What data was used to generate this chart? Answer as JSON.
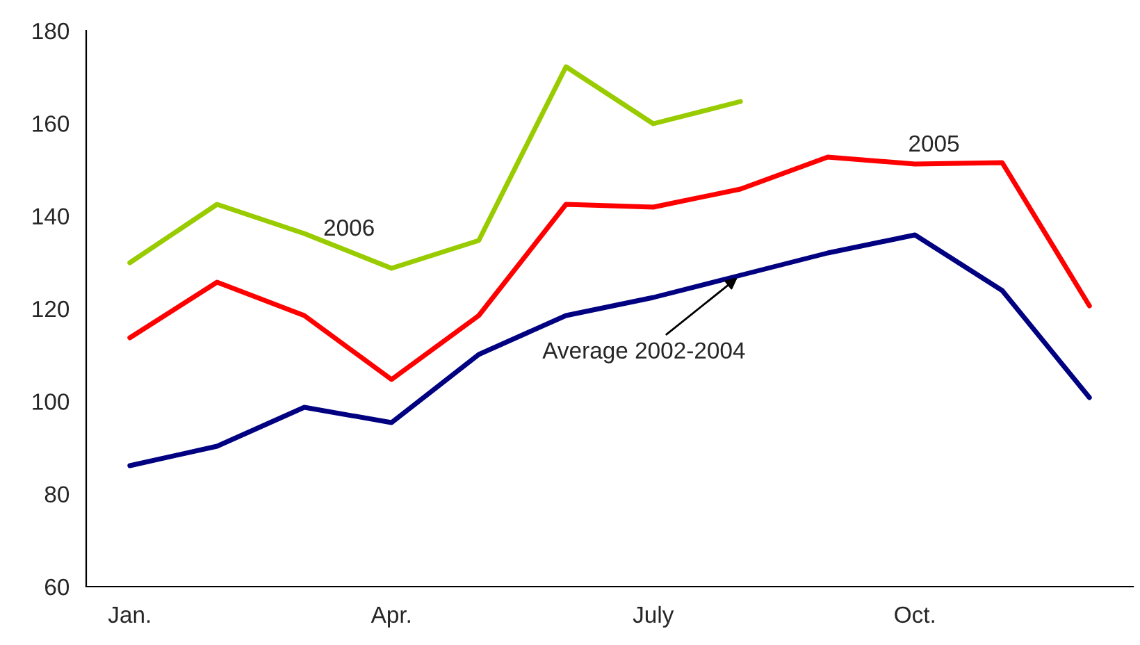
{
  "chart_data": {
    "type": "line",
    "categories": [
      "Jan.",
      null,
      null,
      "Apr.",
      null,
      null,
      "July",
      null,
      null,
      "Oct.",
      null,
      null
    ],
    "series": [
      {
        "name": "Average 2002-2004",
        "color": "#000080",
        "values": [
          86.1,
          90.3,
          98.7,
          95.4,
          110.1,
          118.5,
          122.4,
          127.2,
          132,
          135.9,
          123.9,
          100.8
        ]
      },
      {
        "name": "2005",
        "color": "#ff0000",
        "values": [
          113.7,
          125.7,
          118.5,
          104.7,
          118.5,
          142.5,
          141.9,
          145.8,
          152.7,
          151.2,
          151.5,
          120.6
        ]
      },
      {
        "name": "2006",
        "color": "#99cc00",
        "values": [
          129.9,
          142.5,
          136.2,
          128.7,
          134.7,
          172.2,
          159.9,
          164.7,
          null,
          null,
          null,
          null
        ]
      }
    ],
    "ylim": [
      60,
      180
    ],
    "yticks": [
      60,
      80,
      100,
      120,
      140,
      160,
      180
    ],
    "grid": false,
    "legend": false,
    "marker": "none",
    "line_style": "solid"
  }
}
